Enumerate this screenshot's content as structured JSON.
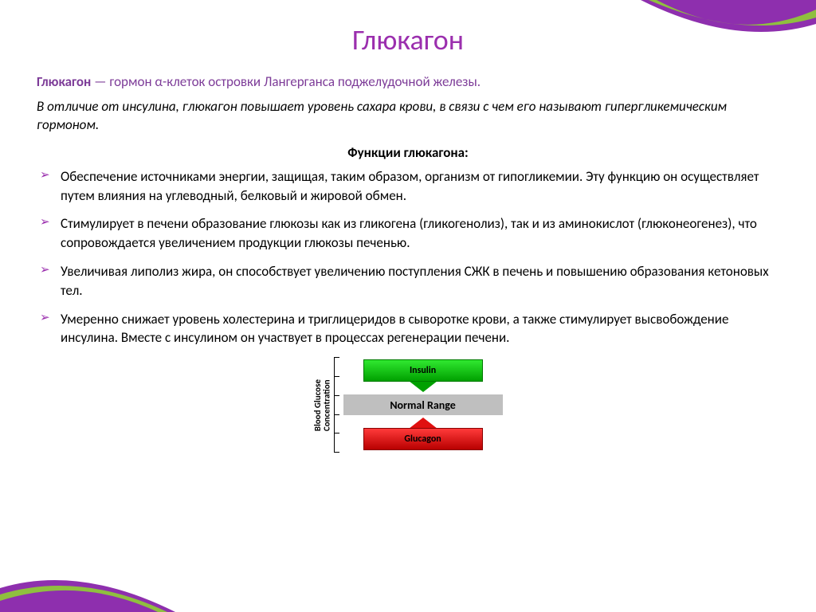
{
  "colors": {
    "accent_purple": "#8e2hae",
    "title_color": "#9b2fae",
    "definition_color": "#7d3c98",
    "bullet_color": "#9b2fae",
    "text_black": "#000000",
    "insulin_fill": "#00c400",
    "insulin_stroke": "#007a00",
    "glucagon_fill": "#e01010",
    "glucagon_stroke": "#8a0000",
    "normal_fill": "#bfbfbf",
    "deco_purple": "#8e2fae",
    "deco_green": "#8fbf3f"
  },
  "title": "Глюкагон",
  "definition": {
    "term": "Глюкагон",
    "connector": " — ",
    "rest": "гормон α-клеток островки Лангерганса поджелудочной железы."
  },
  "intro": "В отличие от инсулина, глюкагон повышает уровень сахара крови, в связи с чем его называют гипергликемическим гормоном.",
  "subheading": "Функции глюкагона:",
  "functions": [
    "Обеспечение источниками энергии, защищая, таким образом, организм от гипогликемии. Эту функцию он осуществляет путем влияния на углеводный, белковый и жировой обмен.",
    "Стимулирует в печени образование глюкозы как из гликогена (гликогенолиз), так и из аминокислот (глюконеогенез), что сопровождается увеличением продукции глюкозы печенью.",
    "Увеличивая липолиз жира, он способствует увеличению поступления СЖК в печень и повышению образования кетоновых тел.",
    "Умеренно снижает уровень холестерина и триглицеридов в сыворотке крови, а также стимулирует высвобождение инсулина. Вместе с инсулином он участвует в процессах регенерации печени."
  ],
  "diagram": {
    "y_label": "Blood Glucose\nConcentration",
    "insulin_label": "Insulin",
    "normal_label": "Normal Range",
    "glucagon_label": "Glucagon",
    "tick_count": 6
  }
}
